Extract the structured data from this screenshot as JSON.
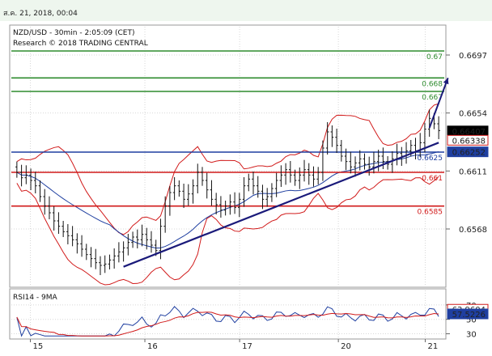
{
  "header": {
    "date": "ส.ค. 21, 2018, 00:04"
  },
  "chart_data": {
    "type": "candlestick",
    "symbol_line": "NZD/USD - 30min - 2:05:09 (CET)",
    "research_line": "Research © 2018 TRADING CENTRAL",
    "y_range": [
      0.6526,
      0.6718
    ],
    "y_ticks": [
      "0.6697",
      "0.6654",
      "0.6611",
      "0.6568"
    ],
    "x_ticks": [
      "15",
      "16",
      "17",
      "20",
      "21"
    ],
    "levels": [
      {
        "label": "0.67",
        "value": 0.67,
        "color": "#2e8b2e"
      },
      {
        "label": "0.668",
        "value": 0.668,
        "color": "#2e8b2e"
      },
      {
        "label": "0.667",
        "value": 0.667,
        "color": "#2e8b2e"
      },
      {
        "label": "0.6625",
        "value": 0.6625,
        "color": "#1f3fa0"
      },
      {
        "label": "0.661",
        "value": 0.661,
        "color": "#d11a1a"
      },
      {
        "label": "0.6585",
        "value": 0.6585,
        "color": "#d11a1a"
      }
    ],
    "price_badges": [
      {
        "text": "0.66407",
        "value": 0.66407,
        "bg": "#000000",
        "fg": "#ffffff"
      },
      {
        "text": "0.66338",
        "value": 0.66338,
        "bg": "#ffffff",
        "fg": "#d11a1a"
      },
      {
        "text": "0.66252",
        "value": 0.66252,
        "bg": "#1f3fa0",
        "fg": "#ffffff"
      }
    ],
    "closes": [
      0.661,
      0.6606,
      0.6608,
      0.6604,
      0.66,
      0.6592,
      0.6585,
      0.658,
      0.6574,
      0.657,
      0.6566,
      0.6563,
      0.656,
      0.6557,
      0.6553,
      0.6549,
      0.6546,
      0.6543,
      0.6541,
      0.6542,
      0.6545,
      0.6548,
      0.6551,
      0.6554,
      0.6558,
      0.6562,
      0.656,
      0.6564,
      0.656,
      0.6556,
      0.6552,
      0.657,
      0.6585,
      0.6595,
      0.66,
      0.6596,
      0.659,
      0.6594,
      0.66,
      0.661,
      0.6604,
      0.6597,
      0.659,
      0.6586,
      0.6582,
      0.6585,
      0.6588,
      0.6584,
      0.659,
      0.66,
      0.6605,
      0.66,
      0.6596,
      0.659,
      0.6592,
      0.6598,
      0.6604,
      0.6608,
      0.6612,
      0.6608,
      0.6604,
      0.6608,
      0.6612,
      0.6608,
      0.6605,
      0.661,
      0.6628,
      0.664,
      0.6636,
      0.663,
      0.6622,
      0.6618,
      0.6614,
      0.6617,
      0.662,
      0.6616,
      0.6614,
      0.6618,
      0.6622,
      0.6618,
      0.6616,
      0.662,
      0.6624,
      0.6622,
      0.6626,
      0.663,
      0.6626,
      0.6632,
      0.6642,
      0.665,
      0.6646,
      0.6641
    ],
    "trendline": {
      "start": [
        23,
        0.654
      ],
      "end": [
        91,
        0.6632
      ]
    },
    "projection": {
      "start": [
        89,
        0.6643
      ],
      "end": [
        93,
        0.668
      ]
    },
    "rsi": {
      "label": "RSI14 - 9MA",
      "y_range": [
        25,
        90
      ],
      "ticks": [
        "70",
        "50",
        "30"
      ],
      "badges": [
        {
          "text": "63.9604",
          "value": 63.9604,
          "bg": "#ffffff",
          "fg": "#d11a1a"
        },
        {
          "text": "57.5226",
          "value": 57.5226,
          "bg": "#1f3fa0",
          "fg": "#ffffff"
        }
      ]
    }
  }
}
